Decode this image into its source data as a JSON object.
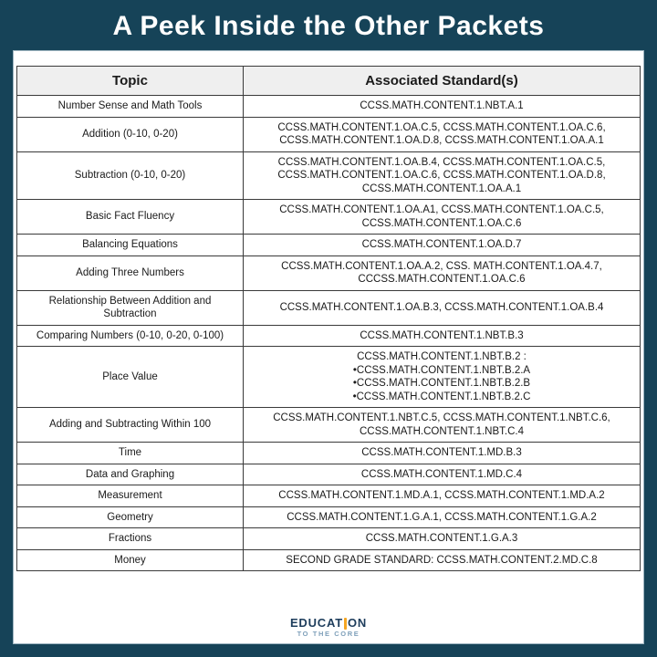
{
  "title": "A Peek Inside the Other Packets",
  "colors": {
    "background_teal": "#164358",
    "panel_white": "#FFFFFF",
    "header_gray": "#EFEFEF",
    "table_border": "#3A3A3A",
    "logo_navy": "#1E3D5C",
    "logo_orange": "#F5A623",
    "logo_light_blue": "#7FA0BA"
  },
  "table": {
    "headers": [
      "Topic",
      "Associated Standard(s)"
    ],
    "rows": [
      {
        "topic": "Number Sense and Math Tools",
        "standards": "CCSS.MATH.CONTENT.1.NBT.A.1"
      },
      {
        "topic": "Addition (0-10, 0-20)",
        "standards": "CCSS.MATH.CONTENT.1.OA.C.5, CCSS.MATH.CONTENT.1.OA.C.6, CCSS.MATH.CONTENT.1.OA.D.8, CCSS.MATH.CONTENT.1.OA.A.1"
      },
      {
        "topic": "Subtraction (0-10, 0-20)",
        "standards": "CCSS.MATH.CONTENT.1.OA.B.4, CCSS.MATH.CONTENT.1.OA.C.5, CCSS.MATH.CONTENT.1.OA.C.6, CCSS.MATH.CONTENT.1.OA.D.8, CCSS.MATH.CONTENT.1.OA.A.1"
      },
      {
        "topic": "Basic Fact Fluency",
        "standards": "CCSS.MATH.CONTENT.1.OA.A1, CCSS.MATH.CONTENT.1.OA.C.5, CCSS.MATH.CONTENT.1.OA.C.6"
      },
      {
        "topic": "Balancing Equations",
        "standards": "CCSS.MATH.CONTENT.1.OA.D.7"
      },
      {
        "topic": "Adding Three Numbers",
        "standards": "CCSS.MATH.CONTENT.1.OA.A.2, CSS. MATH.CONTENT.1.OA.4.7, CCCSS.MATH.CONTENT.1.OA.C.6"
      },
      {
        "topic": "Relationship Between Addition and Subtraction",
        "standards": "CCSS.MATH.CONTENT.1.OA.B.3, CCSS.MATH.CONTENT.1.OA.B.4"
      },
      {
        "topic": "Comparing Numbers (0-10, 0-20, 0-100)",
        "standards": "CCSS.MATH.CONTENT.1.NBT.B.3"
      },
      {
        "topic": "Place Value",
        "standards": [
          "CCSS.MATH.CONTENT.1.NBT.B.2 :",
          "•CCSS.MATH.CONTENT.1.NBT.B.2.A",
          "•CCSS.MATH.CONTENT.1.NBT.B.2.B",
          "•CCSS.MATH.CONTENT.1.NBT.B.2.C"
        ]
      },
      {
        "topic": "Adding and Subtracting Within 100",
        "standards": "CCSS.MATH.CONTENT.1.NBT.C.5, CCSS.MATH.CONTENT.1.NBT.C.6, CCSS.MATH.CONTENT.1.NBT.C.4"
      },
      {
        "topic": "Time",
        "standards": "CCSS.MATH.CONTENT.1.MD.B.3"
      },
      {
        "topic": "Data and Graphing",
        "standards": "CCSS.MATH.CONTENT.1.MD.C.4"
      },
      {
        "topic": "Measurement",
        "standards": "CCSS.MATH.CONTENT.1.MD.A.1, CCSS.MATH.CONTENT.1.MD.A.2"
      },
      {
        "topic": "Geometry",
        "standards": "CCSS.MATH.CONTENT.1.G.A.1, CCSS.MATH.CONTENT.1.G.A.2"
      },
      {
        "topic": "Fractions",
        "standards": "CCSS.MATH.CONTENT.1.G.A.3"
      },
      {
        "topic": "Money",
        "standards": "SECOND GRADE STANDARD: CCSS.MATH.CONTENT.2.MD.C.8"
      }
    ]
  },
  "logo": {
    "word_left": "EDUCAT",
    "word_right": "ON",
    "tagline": "TO THE CORE"
  }
}
